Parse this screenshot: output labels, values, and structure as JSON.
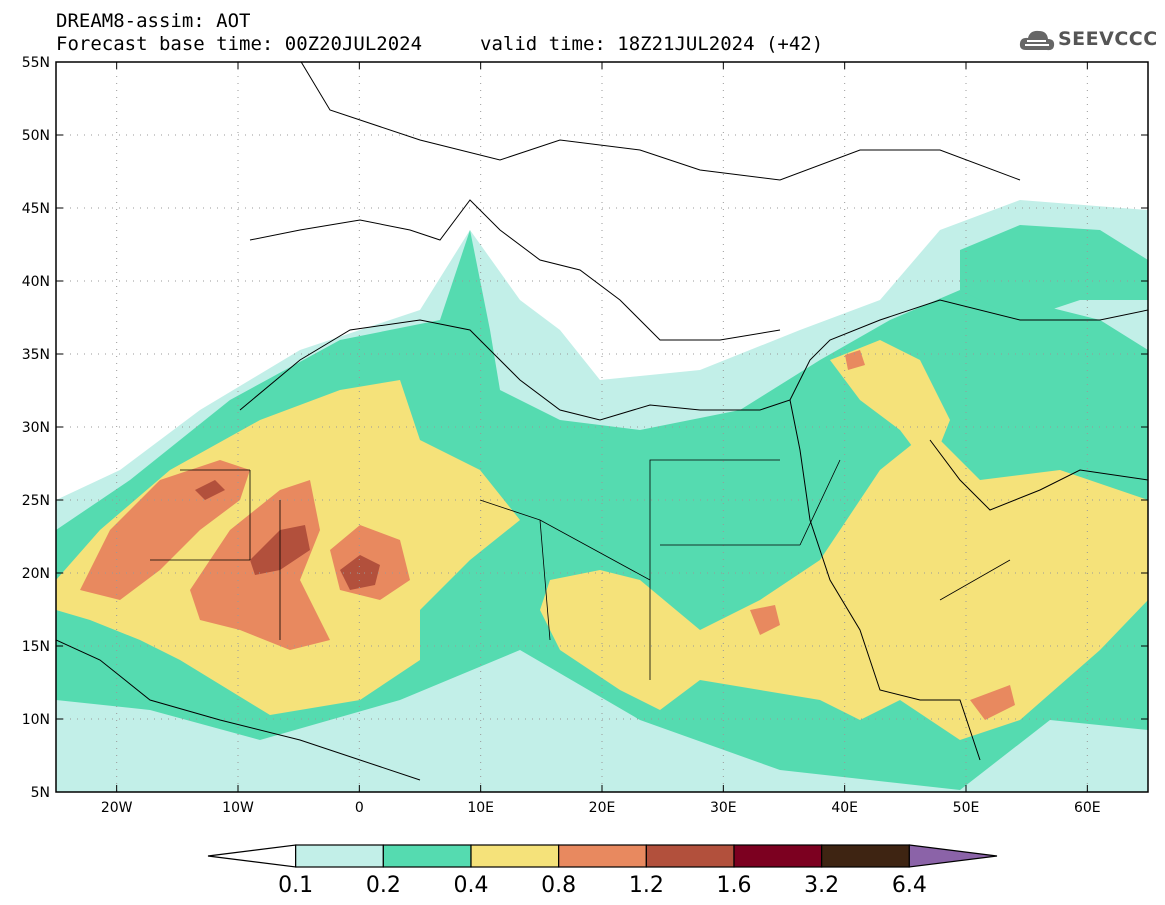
{
  "header": {
    "model_title": "DREAM8-assim: AOT",
    "base_time": "Forecast base time: 00Z20JUL2024",
    "valid_time": "valid time: 18Z21JUL2024 (+42)"
  },
  "logo": {
    "text": "SEEVCCC",
    "icon": "cloud-icon"
  },
  "map": {
    "lat_labels": [
      "55N",
      "50N",
      "45N",
      "40N",
      "35N",
      "30N",
      "25N",
      "20N",
      "15N",
      "10N",
      "5N"
    ],
    "lon_labels": [
      "20W",
      "10W",
      "0",
      "10E",
      "20E",
      "30E",
      "40E",
      "50E",
      "60E"
    ],
    "lon_range": [
      -25,
      65
    ],
    "lat_range": [
      5,
      55
    ],
    "grid": "dotted"
  },
  "colorbar": {
    "tick_labels": [
      "0.1",
      "0.2",
      "0.4",
      "0.8",
      "1.2",
      "1.6",
      "3.2",
      "6.4"
    ],
    "colors": [
      "#ffffff",
      "#c2efe8",
      "#55dbb0",
      "#f5e27a",
      "#e8895f",
      "#b2503c",
      "#7c0020",
      "#3e2412",
      "#8b63a8"
    ]
  }
}
